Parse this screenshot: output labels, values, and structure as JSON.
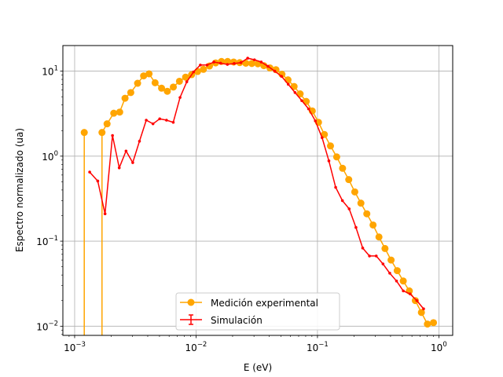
{
  "chart_data": {
    "type": "line",
    "title": "",
    "xlabel": "E (eV)",
    "ylabel": "Espectro normalizado (ua)",
    "xscale": "log",
    "yscale": "log",
    "xlim": [
      0.0008,
      1.3
    ],
    "ylim": [
      0.0078,
      20
    ],
    "grid": true,
    "legend_position": "lower-center",
    "x_ticks": [
      {
        "value": 0.001,
        "base": "10",
        "exp": "−3"
      },
      {
        "value": 0.01,
        "base": "10",
        "exp": "−2"
      },
      {
        "value": 0.1,
        "base": "10",
        "exp": "−1"
      },
      {
        "value": 1,
        "base": "10",
        "exp": "0"
      }
    ],
    "y_ticks": [
      {
        "value": 0.01,
        "base": "10",
        "exp": "−2"
      },
      {
        "value": 0.1,
        "base": "10",
        "exp": "−1"
      },
      {
        "value": 1,
        "base": "10",
        "exp": "0"
      },
      {
        "value": 10,
        "base": "10",
        "exp": "1"
      }
    ],
    "series": [
      {
        "name": "Medición experimental",
        "color": "#FFA500",
        "marker": "circle",
        "drop_to_axis": [
          0.0012,
          0.00168
        ],
        "points": [
          [
            0.0012,
            1.9
          ],
          [
            0.00168,
            1.9
          ],
          [
            0.00185,
            2.4
          ],
          [
            0.0021,
            3.2
          ],
          [
            0.00235,
            3.3
          ],
          [
            0.0026,
            4.8
          ],
          [
            0.0029,
            5.6
          ],
          [
            0.0033,
            7.2
          ],
          [
            0.0037,
            8.8
          ],
          [
            0.0041,
            9.3
          ],
          [
            0.0046,
            7.3
          ],
          [
            0.0052,
            6.3
          ],
          [
            0.0058,
            5.8
          ],
          [
            0.0065,
            6.5
          ],
          [
            0.0073,
            7.6
          ],
          [
            0.0082,
            8.5
          ],
          [
            0.0092,
            9.1
          ],
          [
            0.0103,
            9.9
          ],
          [
            0.0115,
            10.5
          ],
          [
            0.0129,
            11.5
          ],
          [
            0.0145,
            12.5
          ],
          [
            0.0162,
            13.0
          ],
          [
            0.0182,
            13.0
          ],
          [
            0.0204,
            12.8
          ],
          [
            0.0229,
            12.6
          ],
          [
            0.0257,
            12.4
          ],
          [
            0.0288,
            12.3
          ],
          [
            0.0323,
            12.2
          ],
          [
            0.0362,
            11.6
          ],
          [
            0.0406,
            10.9
          ],
          [
            0.0455,
            10.4
          ],
          [
            0.051,
            9.2
          ],
          [
            0.0572,
            7.9
          ],
          [
            0.0642,
            6.6
          ],
          [
            0.072,
            5.4
          ],
          [
            0.0808,
            4.4
          ],
          [
            0.0906,
            3.4
          ],
          [
            0.102,
            2.5
          ],
          [
            0.114,
            1.8
          ],
          [
            0.128,
            1.32
          ],
          [
            0.144,
            0.98
          ],
          [
            0.161,
            0.72
          ],
          [
            0.181,
            0.53
          ],
          [
            0.203,
            0.38
          ],
          [
            0.228,
            0.28
          ],
          [
            0.255,
            0.21
          ],
          [
            0.287,
            0.155
          ],
          [
            0.321,
            0.112
          ],
          [
            0.36,
            0.082
          ],
          [
            0.404,
            0.06
          ],
          [
            0.454,
            0.045
          ],
          [
            0.509,
            0.034
          ],
          [
            0.571,
            0.026
          ],
          [
            0.64,
            0.02
          ],
          [
            0.718,
            0.0145
          ],
          [
            0.805,
            0.0106
          ],
          [
            0.903,
            0.011
          ]
        ]
      },
      {
        "name": "Simulación",
        "color": "#FF0000",
        "marker": "errorbar",
        "points": [
          [
            0.00133,
            0.65
          ],
          [
            0.00155,
            0.51
          ],
          [
            0.00178,
            0.21
          ],
          [
            0.00205,
            1.75
          ],
          [
            0.00233,
            0.73
          ],
          [
            0.00265,
            1.15
          ],
          [
            0.00301,
            0.84
          ],
          [
            0.00342,
            1.5
          ],
          [
            0.00389,
            2.65
          ],
          [
            0.00442,
            2.4
          ],
          [
            0.00502,
            2.75
          ],
          [
            0.00571,
            2.65
          ],
          [
            0.00649,
            2.5
          ],
          [
            0.00738,
            4.9
          ],
          [
            0.00839,
            7.5
          ],
          [
            0.00954,
            9.8
          ],
          [
            0.01085,
            11.8
          ],
          [
            0.01233,
            11.8
          ],
          [
            0.01402,
            12.8
          ],
          [
            0.01594,
            12.4
          ],
          [
            0.01812,
            12.0
          ],
          [
            0.0206,
            12.3
          ],
          [
            0.02342,
            12.6
          ],
          [
            0.02663,
            14.2
          ],
          [
            0.03027,
            13.6
          ],
          [
            0.03442,
            12.8
          ],
          [
            0.03913,
            11.4
          ],
          [
            0.04449,
            10.0
          ],
          [
            0.05058,
            8.7
          ],
          [
            0.0575,
            7.0
          ],
          [
            0.06537,
            5.6
          ],
          [
            0.07432,
            4.5
          ],
          [
            0.0845,
            3.6
          ],
          [
            0.09607,
            2.6
          ],
          [
            0.1092,
            1.65
          ],
          [
            0.1242,
            0.88
          ],
          [
            0.1412,
            0.43
          ],
          [
            0.1605,
            0.3
          ],
          [
            0.1825,
            0.24
          ],
          [
            0.2075,
            0.145
          ],
          [
            0.2359,
            0.083
          ],
          [
            0.2682,
            0.067
          ],
          [
            0.3049,
            0.067
          ],
          [
            0.3466,
            0.054
          ],
          [
            0.3941,
            0.042
          ],
          [
            0.448,
            0.034
          ],
          [
            0.5094,
            0.026
          ],
          [
            0.5791,
            0.024
          ],
          [
            0.6584,
            0.02
          ],
          [
            0.7485,
            0.016
          ]
        ]
      }
    ]
  }
}
